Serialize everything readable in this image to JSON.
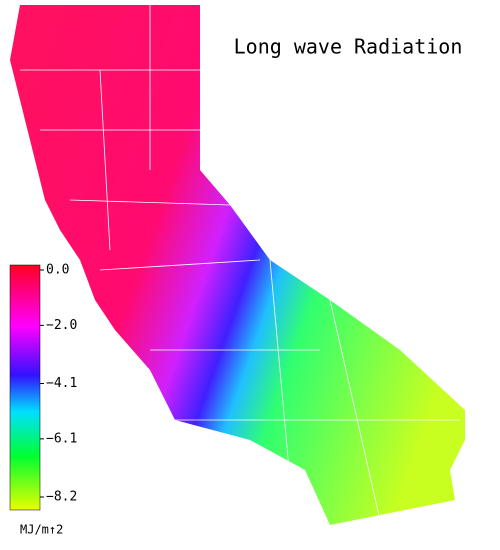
{
  "map": {
    "title": "Long wave Radiation",
    "colorbar": {
      "range": [
        -8.2,
        0.0
      ],
      "ticks": [
        {
          "value": 0.0,
          "label": "0.0"
        },
        {
          "value": -2.0,
          "label": "−2.0"
        },
        {
          "value": -4.1,
          "label": "−4.1"
        },
        {
          "value": -6.1,
          "label": "−6.1"
        },
        {
          "value": -8.2,
          "label": "−8.2"
        }
      ],
      "unit": "MJ/m↑2"
    }
  }
}
